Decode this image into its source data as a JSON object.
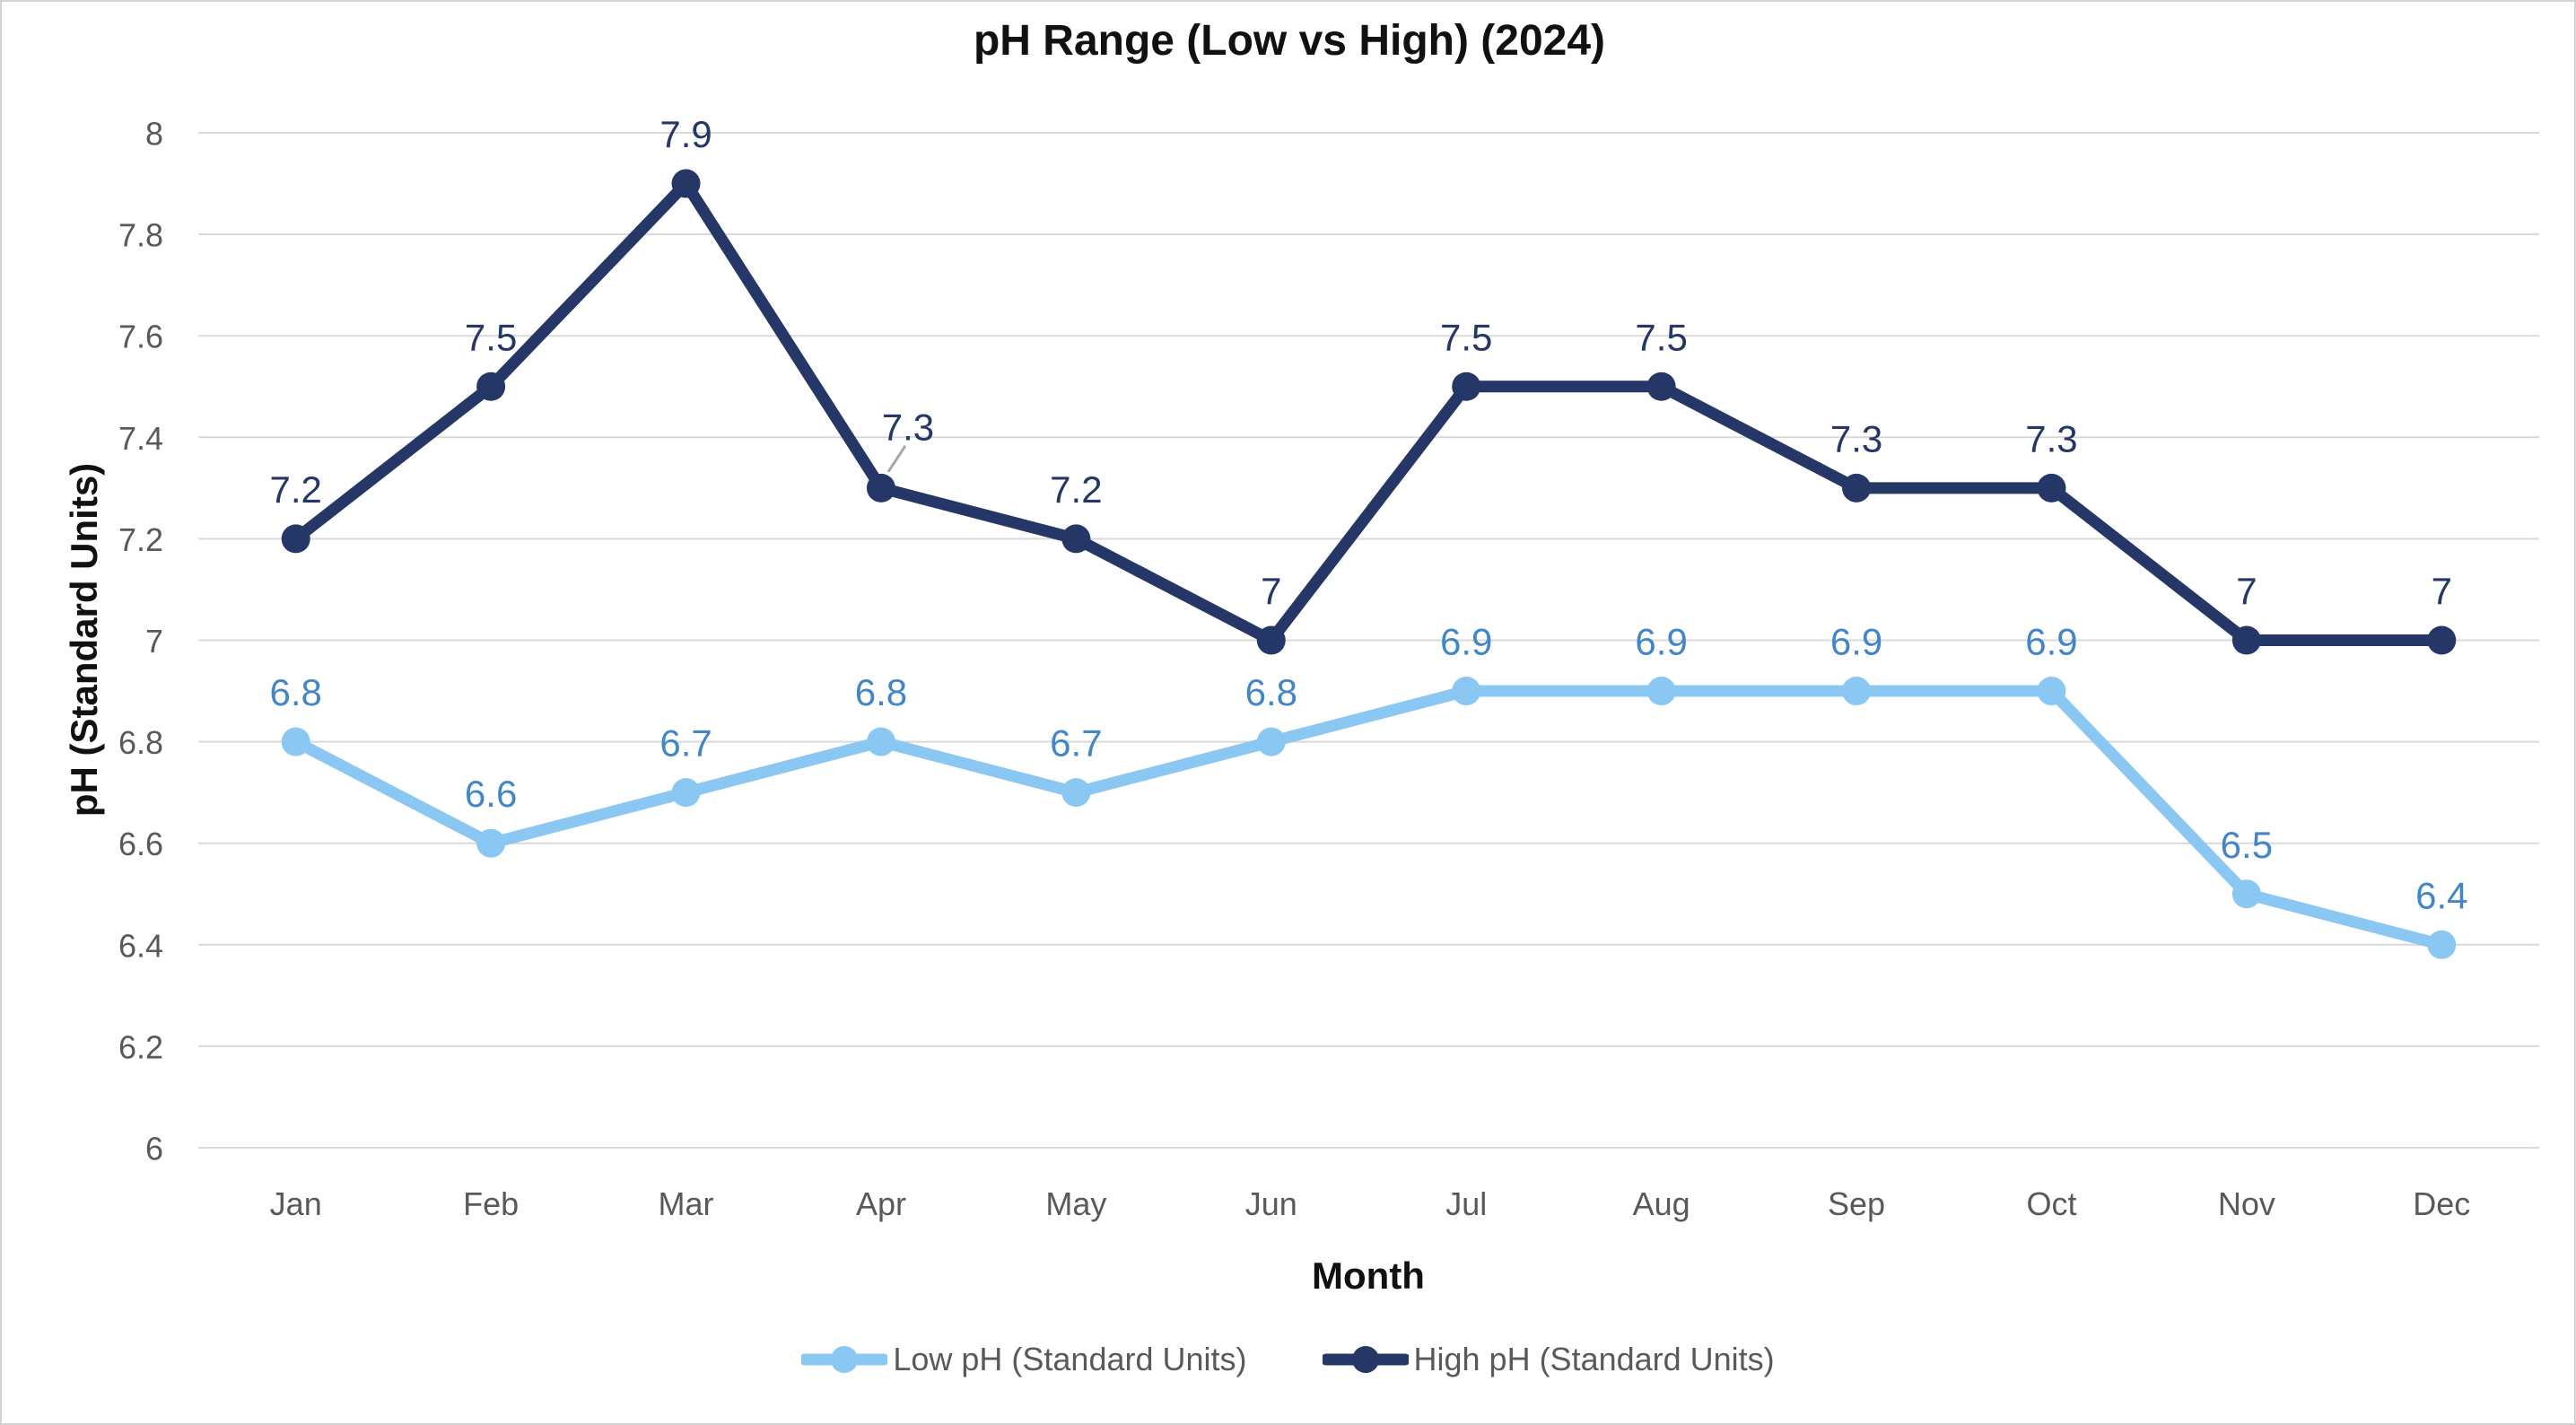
{
  "chart_data": {
    "type": "line",
    "title": "pH Range (Low vs High) (2024)",
    "xlabel": "Month",
    "ylabel": "pH (Standard Units)",
    "categories": [
      "Jan",
      "Feb",
      "Mar",
      "Apr",
      "May",
      "Jun",
      "Jul",
      "Aug",
      "Sep",
      "Oct",
      "Nov",
      "Dec"
    ],
    "series": [
      {
        "name": "Low pH (Standard Units)",
        "color": "#8BC7F3",
        "label_color": "#4386C8",
        "values": [
          6.8,
          6.6,
          6.7,
          6.8,
          6.7,
          6.8,
          6.9,
          6.9,
          6.9,
          6.9,
          6.5,
          6.4
        ]
      },
      {
        "name": "High pH (Standard Units)",
        "color": "#243767",
        "label_color": "#243767",
        "values": [
          7.2,
          7.5,
          7.9,
          7.3,
          7.2,
          7,
          7.5,
          7.5,
          7.3,
          7.3,
          7,
          7
        ]
      }
    ],
    "ylim": [
      6,
      8
    ],
    "ytick_step": 0.2,
    "ytick_labels": [
      "6",
      "6.2",
      "6.4",
      "6.6",
      "6.8",
      "7",
      "7.2",
      "7.4",
      "7.6",
      "7.8",
      "8"
    ],
    "grid": true,
    "legend_position": "bottom",
    "style": {
      "gridline_color": "#D9D9D9",
      "tick_label_color": "#595959",
      "leader_line_color": "#A6A6A6",
      "title_color": "#111111",
      "background": "#FFFFFF"
    }
  }
}
